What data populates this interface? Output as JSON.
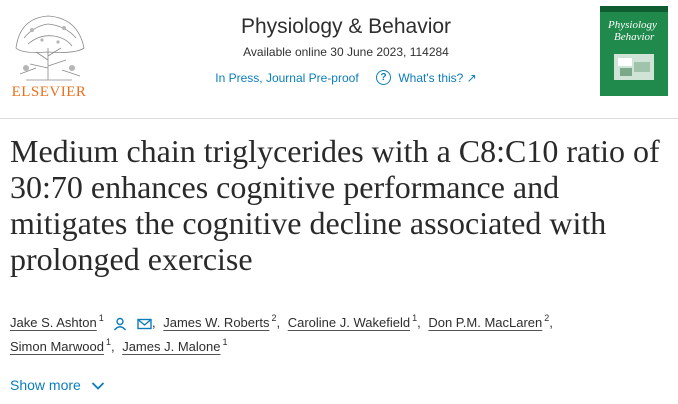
{
  "header": {
    "publisher_name": "ELSEVIER",
    "journal_title": "Physiology & Behavior",
    "available_text": "Available online 30 June 2023, 114284",
    "status_text": "In Press, Journal Pre-proof",
    "whats_this_label": "What's this? ↗",
    "cover_title_line1": "Physiology",
    "cover_title_line2": "Behavior",
    "cover_color": "#1f8a4c"
  },
  "article": {
    "title": "Medium chain triglycerides with a C8:C10 ratio of 30:70 enhances cognitive performance and mitigates the cognitive decline associated with prolonged exercise",
    "authors": [
      {
        "name": "Jake S. Ashton",
        "sup": "1",
        "icons": [
          "person-icon",
          "email-icon"
        ]
      },
      {
        "name": "James W. Roberts",
        "sup": "2"
      },
      {
        "name": "Caroline J. Wakefield",
        "sup": "1"
      },
      {
        "name": "Don P.M. MacLaren",
        "sup": "2"
      },
      {
        "name": "Simon Marwood",
        "sup": "1"
      },
      {
        "name": "James J. Malone",
        "sup": "1"
      }
    ],
    "show_more_label": "Show more"
  },
  "colors": {
    "link": "#0c7dbb",
    "publisher": "#e9711c"
  }
}
